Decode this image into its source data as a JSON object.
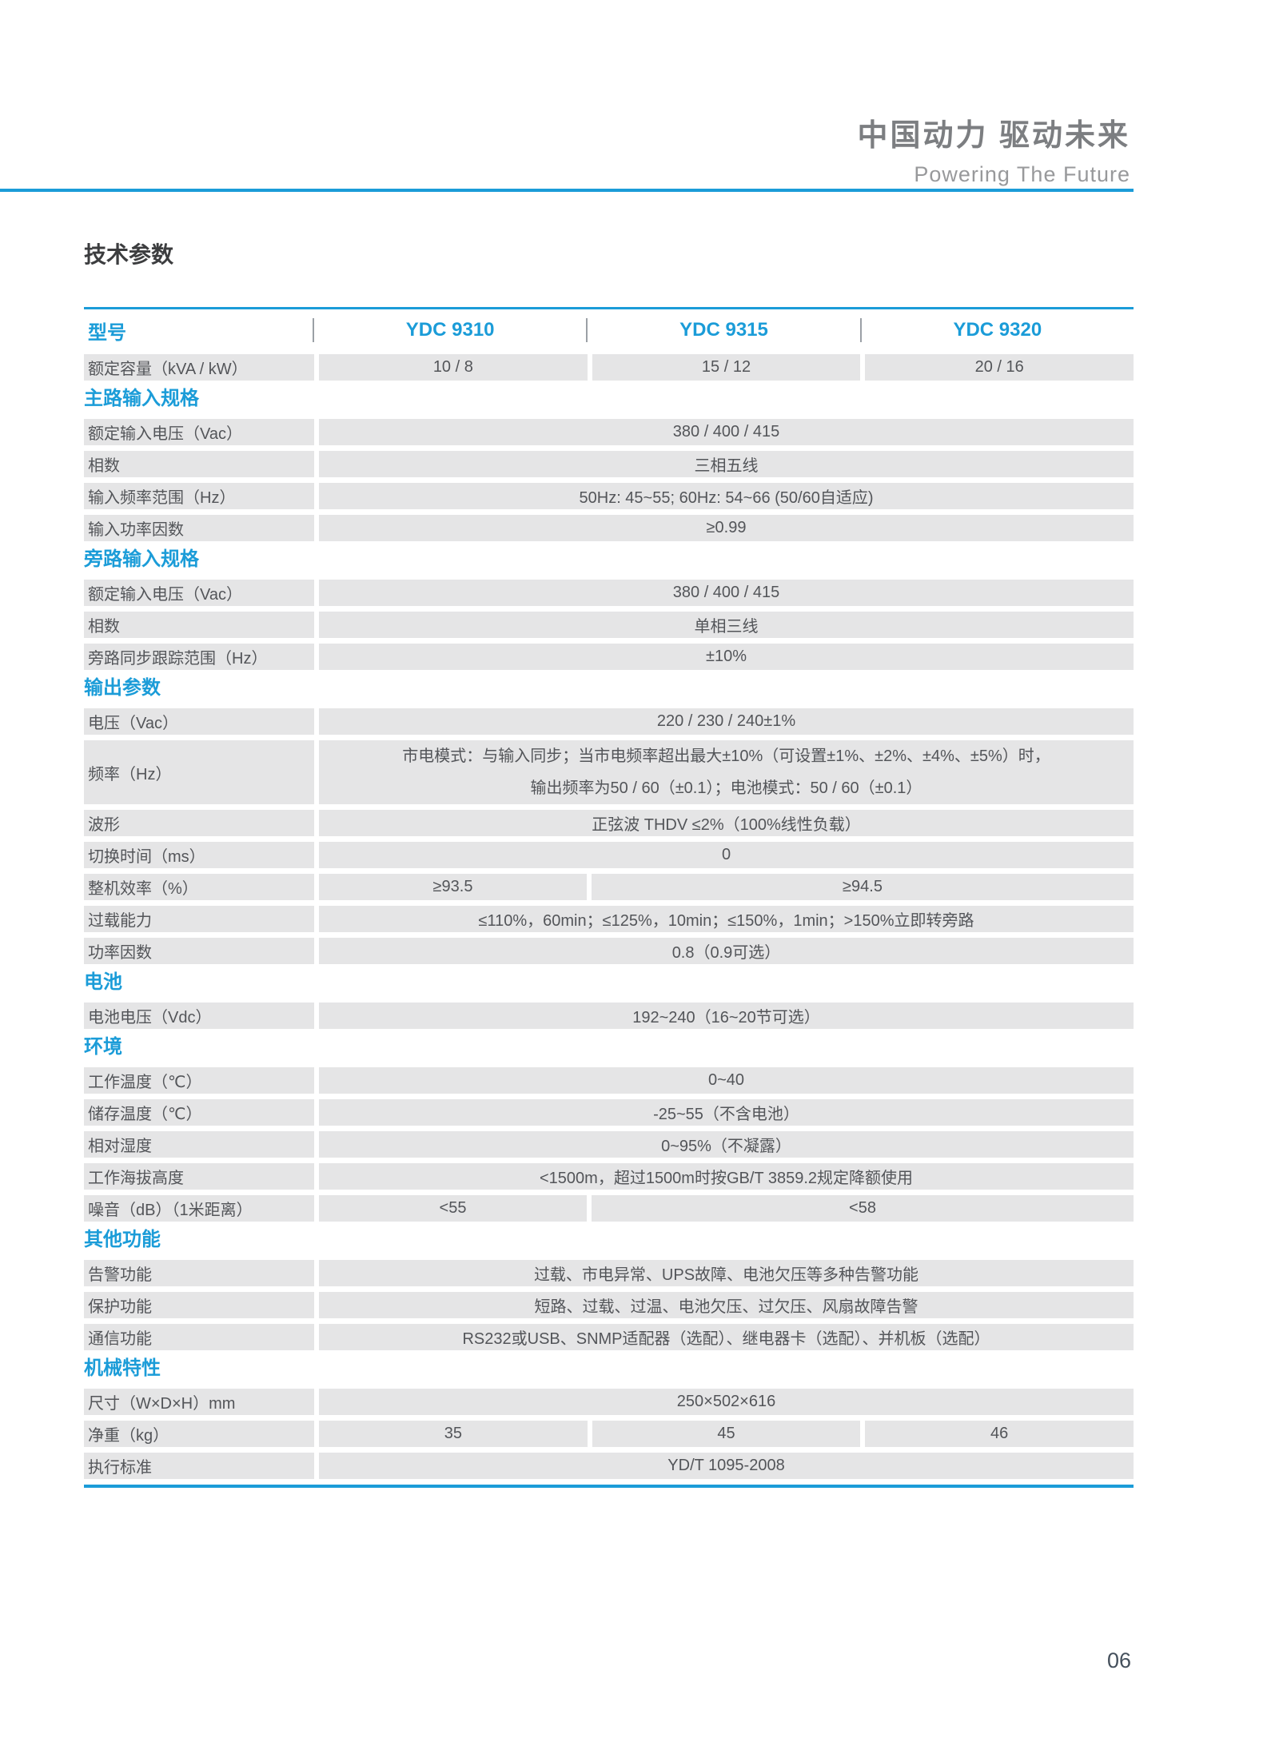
{
  "header": {
    "title_cn": "中国动力 驱动未来",
    "title_en": "Powering The Future"
  },
  "page": {
    "section_title": "技术参数",
    "page_number": "06"
  },
  "colors": {
    "accent": "#1b9cd8",
    "cell_bg": "#e5e5e6",
    "text": "#535559"
  },
  "table": {
    "model_row": {
      "label": "型号",
      "models": [
        "YDC 9310",
        "YDC 9315",
        "YDC 9320"
      ]
    },
    "rows": [
      {
        "type": "cells3",
        "label": "额定容量（kVA / kW）",
        "values": [
          "10 / 8",
          "15 / 12",
          "20 / 16"
        ]
      },
      {
        "type": "section",
        "title": "主路输入规格"
      },
      {
        "type": "span",
        "label": "额定输入电压（Vac）",
        "value": "380 / 400 / 415"
      },
      {
        "type": "span",
        "label": "相数",
        "value": "三相五线"
      },
      {
        "type": "span",
        "label": "输入频率范围（Hz）",
        "value": "50Hz: 45~55; 60Hz: 54~66 (50/60自适应)"
      },
      {
        "type": "span",
        "label": "输入功率因数",
        "value": "≥0.99"
      },
      {
        "type": "section",
        "title": "旁路输入规格"
      },
      {
        "type": "span",
        "label": "额定输入电压（Vac）",
        "value": "380 / 400 / 415"
      },
      {
        "type": "span",
        "label": "相数",
        "value": "单相三线"
      },
      {
        "type": "span",
        "label": "旁路同步跟踪范围（Hz）",
        "value": "±10%"
      },
      {
        "type": "section",
        "title": "输出参数"
      },
      {
        "type": "span",
        "label": "电压（Vac）",
        "value": "220 / 230 / 240±1%"
      },
      {
        "type": "span2",
        "label": "频率（Hz）",
        "lines": [
          "市电模式：与输入同步；当市电频率超出最大±10%（可设置±1%、±2%、±4%、±5%）时，",
          "输出频率为50 / 60（±0.1）；电池模式：50 / 60（±0.1）"
        ]
      },
      {
        "type": "span",
        "label": "波形",
        "value": "正弦波 THDV ≤2%（100%线性负载）"
      },
      {
        "type": "span",
        "label": "切换时间（ms）",
        "value": "0"
      },
      {
        "type": "split2",
        "label": "整机效率（%）",
        "values": [
          "≥93.5",
          "≥94.5"
        ]
      },
      {
        "type": "span",
        "label": "过载能力",
        "value": "≤110%，60min；≤125%，10min；≤150%，1min；>150%立即转旁路"
      },
      {
        "type": "span",
        "label": "功率因数",
        "value": "0.8（0.9可选）"
      },
      {
        "type": "section",
        "title": "电池"
      },
      {
        "type": "span",
        "label": "电池电压（Vdc）",
        "value": "192~240（16~20节可选）"
      },
      {
        "type": "section",
        "title": "环境"
      },
      {
        "type": "span",
        "label": "工作温度（℃）",
        "value": "0~40"
      },
      {
        "type": "span",
        "label": "储存温度（℃）",
        "value": "-25~55（不含电池）"
      },
      {
        "type": "span",
        "label": "相对湿度",
        "value": "0~95%（不凝露）"
      },
      {
        "type": "span",
        "label": "工作海拔高度",
        "value": "<1500m，超过1500m时按GB/T 3859.2规定降额使用"
      },
      {
        "type": "split2",
        "label": "噪音（dB）（1米距离）",
        "values": [
          "<55",
          "<58"
        ]
      },
      {
        "type": "section",
        "title": "其他功能"
      },
      {
        "type": "span",
        "label": "告警功能",
        "value": "过载、市电异常、UPS故障、电池欠压等多种告警功能"
      },
      {
        "type": "span",
        "label": "保护功能",
        "value": "短路、过载、过温、电池欠压、过欠压、风扇故障告警"
      },
      {
        "type": "span",
        "label": "通信功能",
        "value": "RS232或USB、SNMP适配器（选配）、继电器卡（选配）、并机板（选配）"
      },
      {
        "type": "section",
        "title": "机械特性"
      },
      {
        "type": "span",
        "label": "尺寸（W×D×H）mm",
        "value": "250×502×616"
      },
      {
        "type": "cells3",
        "label": "净重（kg）",
        "values": [
          "35",
          "45",
          "46"
        ]
      },
      {
        "type": "span",
        "label": "执行标准",
        "value": "YD/T 1095-2008"
      }
    ]
  }
}
